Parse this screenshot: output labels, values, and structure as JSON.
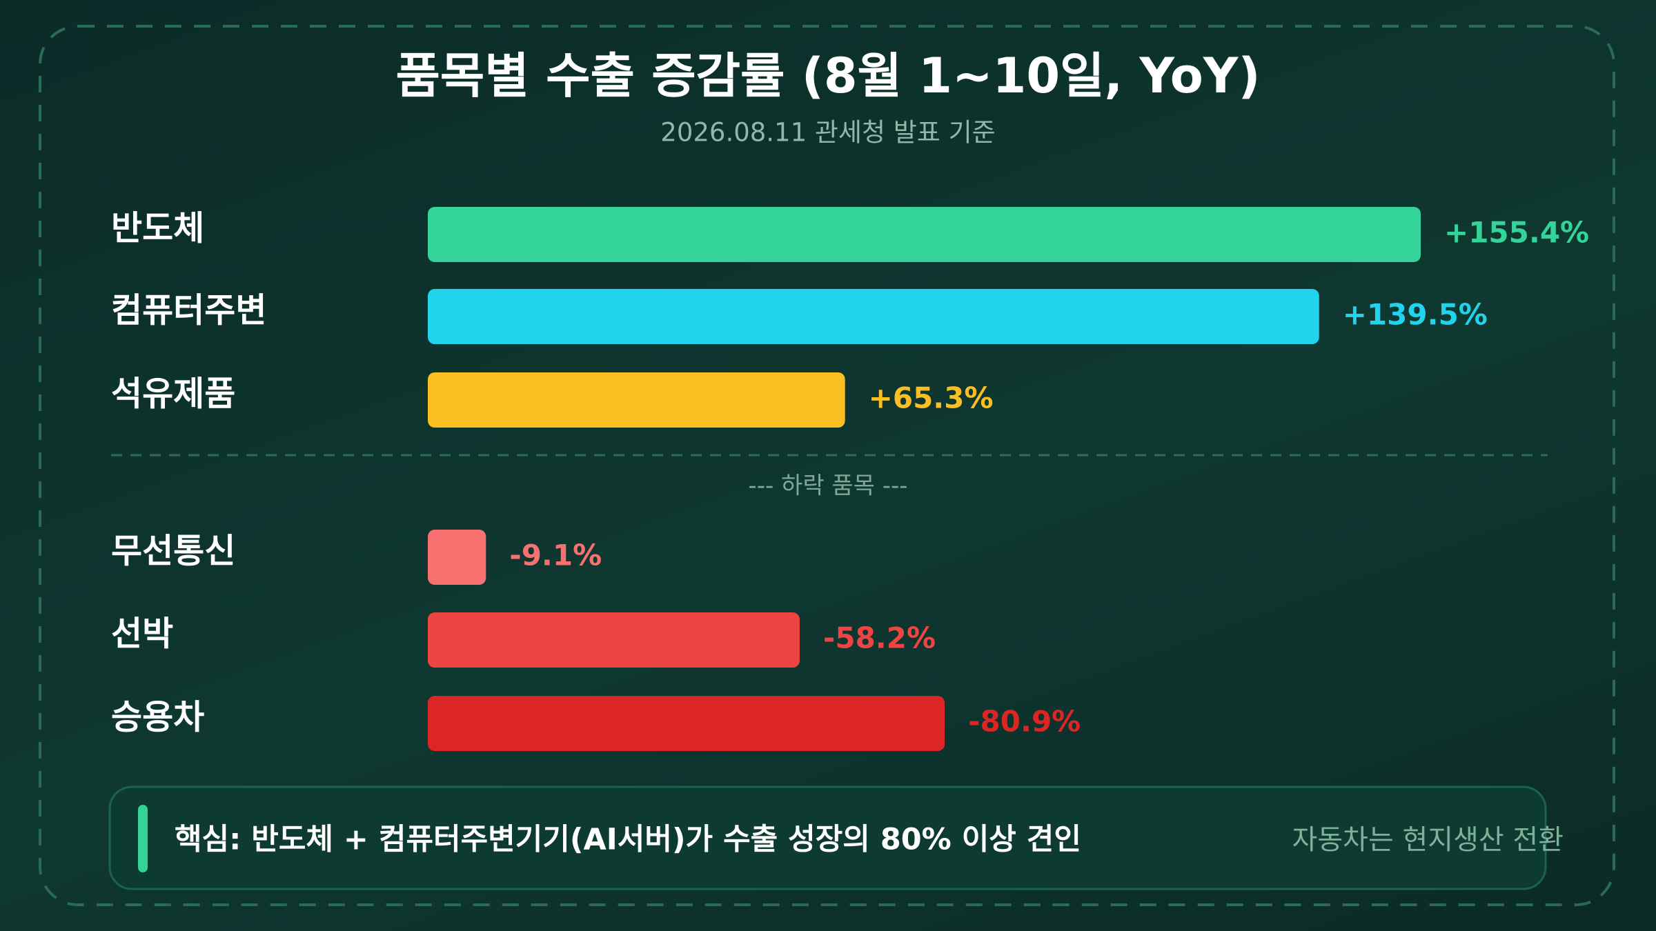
{
  "chart_data": {
    "type": "bar",
    "orientation": "horizontal",
    "title": "품목별 수출 증감률 (8월 1~10일, YoY)",
    "subtitle": "2026.08.11 관세청 발표 기준",
    "groups": [
      {
        "categories": [
          "반도체",
          "컴퓨터주변",
          "석유제품"
        ],
        "values": [
          155.4,
          139.5,
          65.3
        ],
        "value_labels": [
          "+155.4%",
          "+139.5%",
          "+65.3%"
        ],
        "colors": [
          "#34d399",
          "#22d3ee",
          "#fbbf24"
        ]
      },
      {
        "name": "--- 하락 품목 ---",
        "categories": [
          "무선통신",
          "선박",
          "승용차"
        ],
        "values": [
          -9.1,
          -58.2,
          -80.9
        ],
        "value_labels": [
          "-9.1%",
          "-58.2%",
          "-80.9%"
        ],
        "colors": [
          "#f87171",
          "#ef4444",
          "#dc2626"
        ]
      }
    ]
  },
  "note": {
    "text": "핵심: 반도체 + 컴퓨터주변기기(AI서버)가 수출 성장의 80% 이상 견인",
    "side_text": "자동차는 현지생산 전환"
  }
}
